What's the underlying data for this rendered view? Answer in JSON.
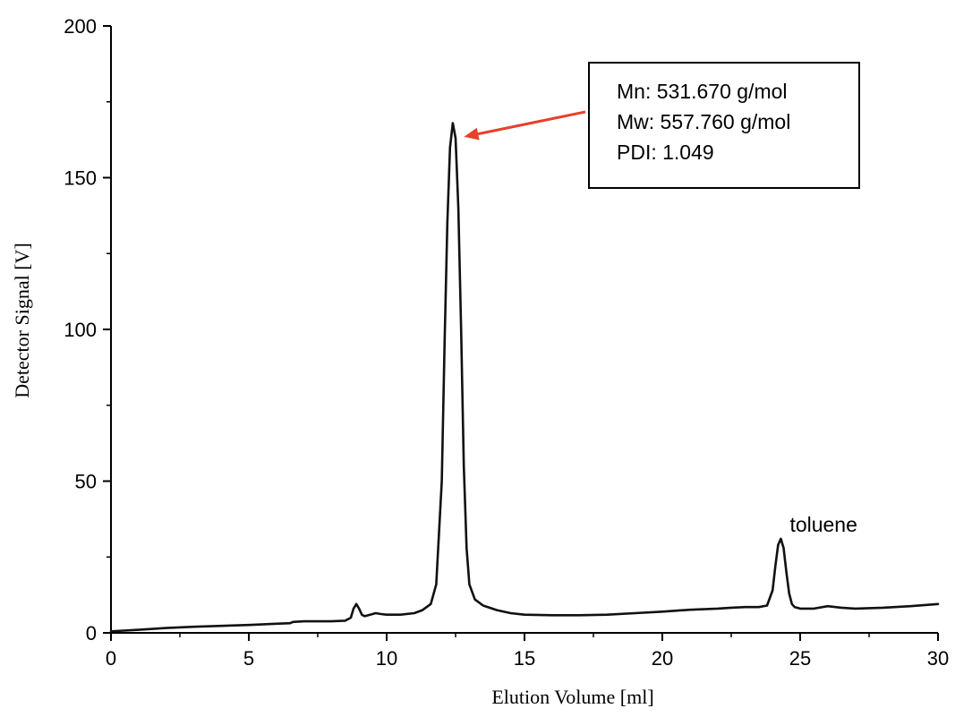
{
  "chart_data": {
    "type": "line",
    "xlabel": "Elution Volume [ml]",
    "ylabel": "Detector Signal [V]",
    "xlim": [
      0,
      30
    ],
    "ylim": [
      0,
      200
    ],
    "x_ticks": [
      0,
      5,
      10,
      15,
      20,
      25,
      30
    ],
    "y_ticks": [
      0,
      50,
      100,
      150,
      200
    ],
    "x_minor_step": 2.5,
    "y_minor_step": 25,
    "grid": false,
    "line_color": "#111111",
    "series": [
      {
        "x": [
          0,
          1,
          2,
          3,
          4,
          5,
          6,
          6.5,
          6.6,
          7.0,
          7.5,
          8.0,
          8.5,
          8.7,
          8.8,
          8.9,
          9.0,
          9.1,
          9.2,
          9.4,
          9.6,
          9.8,
          10.0,
          10.5,
          11.0,
          11.3,
          11.6,
          11.8,
          12.0,
          12.1,
          12.2,
          12.3,
          12.4,
          12.5,
          12.6,
          12.7,
          12.8,
          12.9,
          13.0,
          13.2,
          13.5,
          14.0,
          14.5,
          15.0,
          16.0,
          17.0,
          18.0,
          19.0,
          20.0,
          21.0,
          22.0,
          22.5,
          23.0,
          23.5,
          23.8,
          24.0,
          24.1,
          24.2,
          24.3,
          24.4,
          24.5,
          24.6,
          24.7,
          24.8,
          25.0,
          25.5,
          26.0,
          26.5,
          27.0,
          28.0,
          29.0,
          30.0
        ],
        "y": [
          0.5,
          1,
          1.6,
          2,
          2.3,
          2.6,
          3,
          3.2,
          3.6,
          3.8,
          3.8,
          3.8,
          4,
          5,
          8,
          9.5,
          8,
          6,
          5.5,
          6,
          6.5,
          6.2,
          6,
          6,
          6.5,
          7.5,
          9.5,
          16,
          50,
          95,
          135,
          160,
          168,
          163,
          140,
          100,
          55,
          28,
          16,
          11,
          9,
          7.5,
          6.5,
          6,
          5.8,
          5.8,
          6,
          6.5,
          7,
          7.6,
          8,
          8.3,
          8.5,
          8.5,
          9,
          14,
          22,
          29,
          31,
          28,
          20,
          13,
          9.5,
          8.5,
          8,
          8,
          8.8,
          8.3,
          8,
          8.3,
          8.8,
          9.5
        ]
      }
    ],
    "annotations": {
      "box_lines": [
        "Mn: 531.670 g/mol",
        "Mw: 557.760 g/mol",
        "PDI: 1.049"
      ],
      "arrow_color": "#e8402c",
      "arrow_target_x": 12.55,
      "arrow_target_y": 162,
      "peak_label": "toluene",
      "peak_label_x": 24.3,
      "peak_label_y": 31
    }
  }
}
